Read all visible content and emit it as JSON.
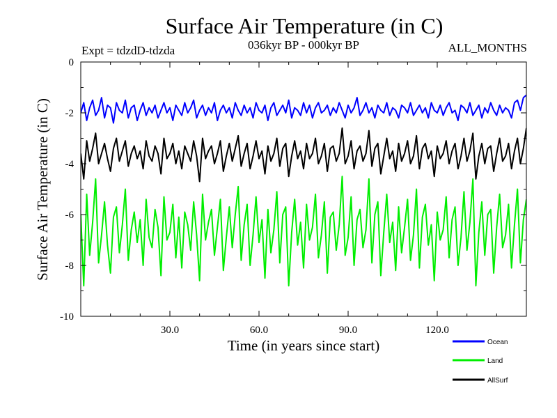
{
  "chart_data": {
    "type": "line",
    "title": "Surface Air Temperature (in C)",
    "subtitle": "036kyr BP - 000kyr BP",
    "expt_label": "Expt = tdzdD-tdzda",
    "months_label": "ALL_MONTHS",
    "xlabel": "Time (in years since start)",
    "ylabel": "Surface Air Temperature (in C)",
    "xlim": [
      0,
      150
    ],
    "ylim": [
      -10,
      0
    ],
    "x_ticks": [
      30,
      60,
      90,
      120
    ],
    "x_tick_labels": [
      "30.0",
      "60.0",
      "90.0",
      "120.0"
    ],
    "y_ticks": [
      0,
      -2,
      -4,
      -6,
      -8,
      -10
    ],
    "y_tick_labels": [
      "0",
      "-2",
      "-4",
      "-6",
      "-8",
      "-10"
    ],
    "series": [
      {
        "name": "Ocean",
        "color": "#0000ff",
        "mean": -1.95,
        "amplitude": 0.28,
        "values": [
          -2.0,
          -1.6,
          -2.3,
          -1.8,
          -1.5,
          -2.1,
          -1.9,
          -1.4,
          -2.2,
          -1.7,
          -1.8,
          -2.4,
          -1.6,
          -1.9,
          -2.0,
          -1.5,
          -2.2,
          -1.8,
          -1.7,
          -2.3,
          -1.9,
          -1.6,
          -2.1,
          -1.8,
          -2.0,
          -1.7,
          -2.2,
          -1.9,
          -1.6,
          -2.0,
          -1.8,
          -2.3,
          -1.7,
          -1.9,
          -2.1,
          -1.6,
          -2.0,
          -1.8,
          -1.5,
          -2.2,
          -1.9,
          -1.7,
          -2.1,
          -1.8,
          -2.0,
          -1.6,
          -2.3,
          -1.9,
          -1.7,
          -2.0,
          -1.8,
          -2.2,
          -1.6,
          -1.9,
          -2.1,
          -1.7,
          -2.0,
          -1.8,
          -2.2,
          -1.6,
          -1.9,
          -2.0,
          -1.7,
          -2.3,
          -1.8,
          -1.6,
          -2.1,
          -1.9,
          -1.7,
          -2.0,
          -1.5,
          -2.2,
          -1.8,
          -1.9,
          -2.1,
          -1.6,
          -2.0,
          -1.7,
          -2.2,
          -1.8,
          -1.6,
          -2.0,
          -1.9,
          -1.7,
          -2.1,
          -1.8,
          -2.0,
          -1.6,
          -1.9,
          -2.2,
          -1.7,
          -2.0,
          -1.8,
          -1.4,
          -2.1,
          -1.9,
          -1.6,
          -2.0,
          -1.8,
          -2.2,
          -1.7,
          -1.9,
          -2.0,
          -1.6,
          -2.1,
          -1.8,
          -1.9,
          -2.2,
          -1.7,
          -1.8,
          -2.0,
          -1.6,
          -2.1,
          -1.9,
          -1.7,
          -2.0,
          -1.8,
          -2.2,
          -1.6,
          -1.9,
          -2.0,
          -1.7,
          -2.1,
          -1.8,
          -1.6,
          -2.0,
          -1.9,
          -2.3,
          -1.7,
          -1.8,
          -2.0,
          -1.6,
          -2.1,
          -1.9,
          -1.7,
          -2.2,
          -1.8,
          -2.0,
          -1.6,
          -1.9,
          -2.1,
          -1.7,
          -2.0,
          -1.8,
          -1.9,
          -2.2,
          -1.6,
          -1.5,
          -1.9,
          -1.4,
          -1.3
        ]
      },
      {
        "name": "Land",
        "color": "#00ee00",
        "mean": -6.6,
        "amplitude": 1.0,
        "values": [
          -6.0,
          -8.8,
          -5.2,
          -7.6,
          -6.3,
          -4.6,
          -7.9,
          -6.8,
          -5.5,
          -7.2,
          -8.3,
          -6.1,
          -5.7,
          -7.5,
          -6.4,
          -5.0,
          -7.8,
          -6.6,
          -5.9,
          -7.1,
          -6.2,
          -8.0,
          -5.4,
          -6.9,
          -7.3,
          -5.8,
          -6.5,
          -8.4,
          -5.3,
          -7.0,
          -6.7,
          -5.6,
          -7.7,
          -6.1,
          -8.1,
          -5.9,
          -6.4,
          -7.4,
          -5.5,
          -6.8,
          -8.6,
          -5.2,
          -7.0,
          -6.3,
          -5.8,
          -7.6,
          -6.5,
          -5.4,
          -8.2,
          -6.9,
          -5.7,
          -7.3,
          -6.0,
          -4.9,
          -7.8,
          -6.4,
          -5.6,
          -8.0,
          -6.8,
          -5.3,
          -7.1,
          -6.2,
          -8.5,
          -5.8,
          -7.5,
          -6.6,
          -5.1,
          -7.9,
          -6.0,
          -5.7,
          -8.8,
          -6.7,
          -5.4,
          -7.2,
          -6.3,
          -8.1,
          -5.6,
          -7.0,
          -6.5,
          -5.2,
          -7.7,
          -6.8,
          -5.5,
          -8.3,
          -6.1,
          -5.9,
          -7.4,
          -6.4,
          -4.5,
          -7.6,
          -6.9,
          -5.3,
          -8.0,
          -6.2,
          -5.8,
          -7.3,
          -6.6,
          -4.6,
          -7.9,
          -6.0,
          -5.5,
          -8.4,
          -6.7,
          -5.2,
          -7.1,
          -6.3,
          -8.2,
          -5.7,
          -7.5,
          -6.5,
          -5.4,
          -7.8,
          -6.8,
          -5.0,
          -8.1,
          -6.1,
          -5.6,
          -7.2,
          -6.4,
          -8.6,
          -5.9,
          -7.0,
          -6.6,
          -5.3,
          -7.7,
          -6.2,
          -5.7,
          -8.0,
          -6.9,
          -5.1,
          -7.4,
          -6.3,
          -4.6,
          -8.8,
          -6.7,
          -5.5,
          -7.6,
          -6.0,
          -5.8,
          -8.3,
          -6.5,
          -5.2,
          -7.3,
          -6.8,
          -5.6,
          -8.1,
          -6.4,
          -5.0,
          -7.9,
          -6.2,
          -5.4
        ]
      },
      {
        "name": "AllSurf",
        "color": "#000000",
        "mean": -3.55,
        "amplitude": 0.42,
        "values": [
          -3.6,
          -4.6,
          -3.1,
          -3.9,
          -3.4,
          -2.8,
          -4.0,
          -3.6,
          -3.2,
          -3.8,
          -4.3,
          -3.4,
          -3.0,
          -3.9,
          -3.5,
          -3.1,
          -4.1,
          -3.6,
          -3.3,
          -3.8,
          -3.5,
          -4.2,
          -3.1,
          -3.7,
          -3.9,
          -3.3,
          -3.6,
          -4.4,
          -3.0,
          -3.8,
          -3.6,
          -3.2,
          -4.0,
          -3.5,
          -4.2,
          -3.3,
          -3.6,
          -3.9,
          -3.1,
          -3.7,
          -4.7,
          -3.0,
          -3.8,
          -3.5,
          -3.3,
          -4.0,
          -3.6,
          -3.1,
          -4.3,
          -3.7,
          -3.2,
          -3.9,
          -3.4,
          -2.9,
          -4.1,
          -3.6,
          -3.2,
          -4.2,
          -3.7,
          -3.1,
          -3.8,
          -3.5,
          -4.4,
          -3.3,
          -3.9,
          -3.6,
          -3.0,
          -4.1,
          -3.4,
          -3.2,
          -4.5,
          -3.7,
          -3.1,
          -3.8,
          -3.5,
          -4.2,
          -3.2,
          -3.8,
          -3.6,
          -3.0,
          -4.0,
          -3.7,
          -3.2,
          -4.3,
          -3.4,
          -3.3,
          -3.9,
          -3.6,
          -2.6,
          -4.0,
          -3.7,
          -3.1,
          -4.2,
          -3.5,
          -3.3,
          -3.9,
          -3.6,
          -2.7,
          -4.1,
          -3.4,
          -3.2,
          -4.4,
          -3.7,
          -3.0,
          -3.8,
          -3.5,
          -4.3,
          -3.2,
          -3.9,
          -3.6,
          -3.1,
          -4.0,
          -3.7,
          -2.9,
          -4.2,
          -3.4,
          -3.2,
          -3.8,
          -3.5,
          -4.5,
          -3.3,
          -3.8,
          -3.6,
          -3.1,
          -4.0,
          -3.5,
          -3.2,
          -4.2,
          -3.7,
          -3.0,
          -3.9,
          -3.5,
          -2.8,
          -4.6,
          -3.7,
          -3.2,
          -4.0,
          -3.4,
          -3.3,
          -4.3,
          -3.6,
          -3.0,
          -3.9,
          -3.7,
          -3.2,
          -4.2,
          -3.5,
          -3.0,
          -4.0,
          -3.4,
          -2.6
        ]
      }
    ],
    "legend": {
      "position": "bottom-right",
      "entries": [
        "Ocean",
        "Land",
        "AllSurf"
      ]
    }
  }
}
